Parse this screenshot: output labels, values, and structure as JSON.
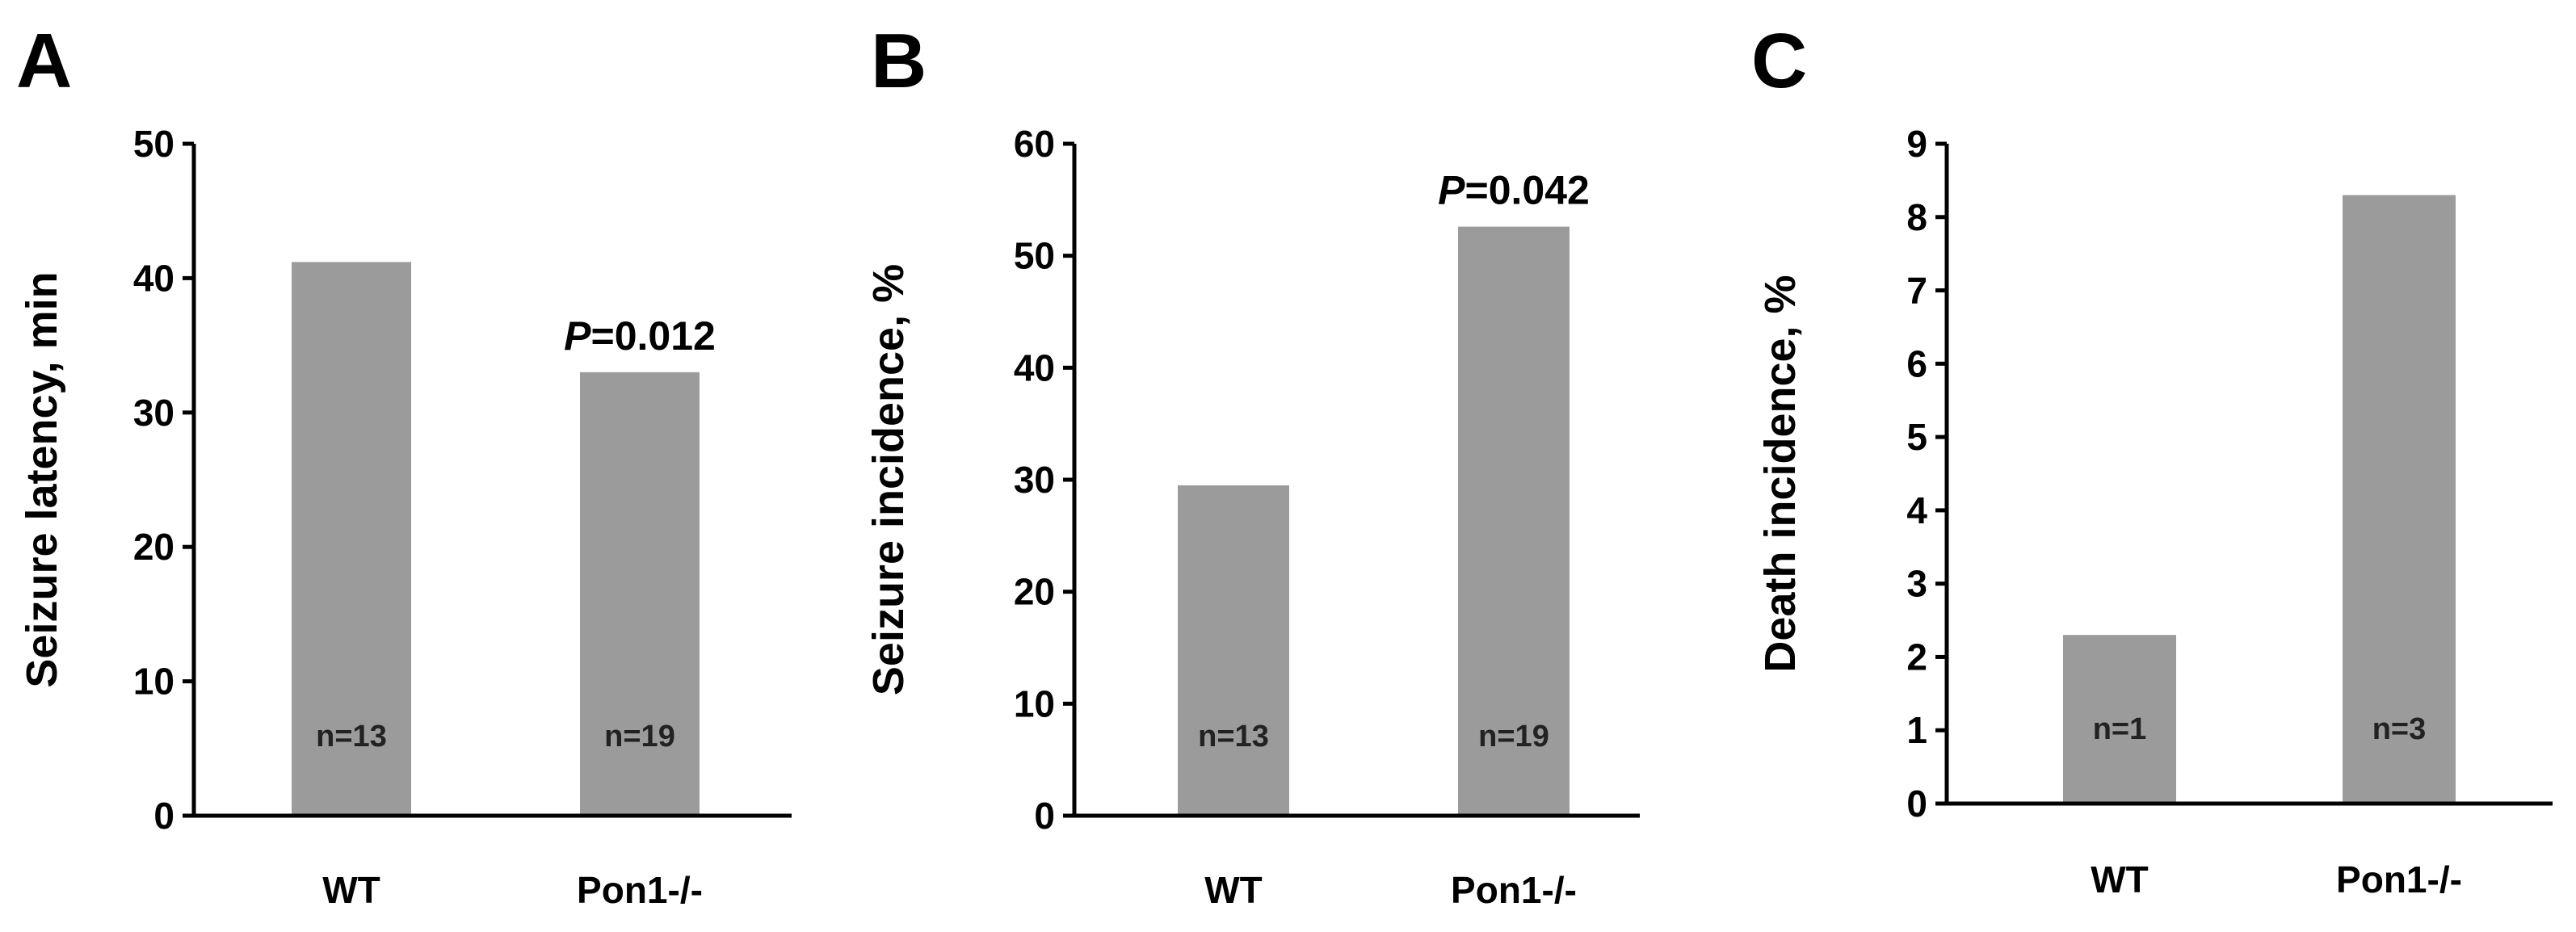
{
  "chart_data": [
    {
      "panel": "A",
      "type": "bar",
      "ylabel": "Seizure latency, min",
      "ylim": [
        0,
        50
      ],
      "yticks": [
        0,
        10,
        20,
        30,
        40,
        50
      ],
      "categories": [
        "WT",
        "Pon1-/-"
      ],
      "values": [
        41.2,
        33
      ],
      "bar_labels": [
        "n=13",
        "n=19"
      ],
      "annotations": [
        {
          "category": "Pon1-/-",
          "prefix": "P",
          "text": "=0.012"
        }
      ],
      "grid": false,
      "bar_color": "#9b9b9b"
    },
    {
      "panel": "B",
      "type": "bar",
      "ylabel": "Seizure incidence, %",
      "ylim": [
        0,
        60
      ],
      "yticks": [
        0,
        10,
        20,
        30,
        40,
        50,
        60
      ],
      "categories": [
        "WT",
        "Pon1-/-"
      ],
      "values": [
        29.5,
        52.6
      ],
      "bar_labels": [
        "n=13",
        "n=19"
      ],
      "annotations": [
        {
          "category": "Pon1-/-",
          "prefix": "P",
          "text": "=0.042"
        }
      ],
      "grid": false,
      "bar_color": "#9b9b9b"
    },
    {
      "panel": "C",
      "type": "bar",
      "ylabel": "Death incidence, %",
      "ylim": [
        0,
        9
      ],
      "yticks": [
        0,
        1,
        2,
        3,
        4,
        5,
        6,
        7,
        8,
        9
      ],
      "categories": [
        "WT",
        "Pon1-/-"
      ],
      "values": [
        2.3,
        8.3
      ],
      "bar_labels": [
        "n=1",
        "n=3"
      ],
      "annotations": [],
      "grid": false,
      "bar_color": "#9b9b9b"
    }
  ]
}
